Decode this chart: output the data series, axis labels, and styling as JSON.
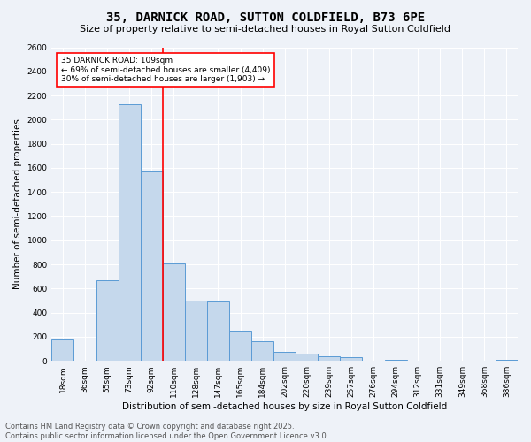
{
  "title": "35, DARNICK ROAD, SUTTON COLDFIELD, B73 6PE",
  "subtitle": "Size of property relative to semi-detached houses in Royal Sutton Coldfield",
  "xlabel": "Distribution of semi-detached houses by size in Royal Sutton Coldfield",
  "ylabel": "Number of semi-detached properties",
  "categories": [
    "18sqm",
    "36sqm",
    "55sqm",
    "73sqm",
    "92sqm",
    "110sqm",
    "128sqm",
    "147sqm",
    "165sqm",
    "184sqm",
    "202sqm",
    "220sqm",
    "239sqm",
    "257sqm",
    "276sqm",
    "294sqm",
    "312sqm",
    "331sqm",
    "349sqm",
    "368sqm",
    "386sqm"
  ],
  "values": [
    180,
    0,
    670,
    2130,
    1570,
    810,
    500,
    490,
    240,
    160,
    75,
    60,
    40,
    30,
    0,
    10,
    0,
    0,
    0,
    0,
    10
  ],
  "bar_color": "#c5d8ec",
  "bar_edge_color": "#5b9bd5",
  "annotation_title": "35 DARNICK ROAD: 109sqm",
  "annotation_line1": "← 69% of semi-detached houses are smaller (4,409)",
  "annotation_line2": "30% of semi-detached houses are larger (1,903) →",
  "ylim": [
    0,
    2600
  ],
  "yticks": [
    0,
    200,
    400,
    600,
    800,
    1000,
    1200,
    1400,
    1600,
    1800,
    2000,
    2200,
    2400,
    2600
  ],
  "footer_line1": "Contains HM Land Registry data © Crown copyright and database right 2025.",
  "footer_line2": "Contains public sector information licensed under the Open Government Licence v3.0.",
  "background_color": "#eef2f8",
  "plot_bg_color": "#eef2f8",
  "title_fontsize": 10,
  "subtitle_fontsize": 8,
  "tick_fontsize": 6.5,
  "ylabel_fontsize": 7.5,
  "xlabel_fontsize": 7.5,
  "footer_fontsize": 6,
  "annotation_fontsize": 6.5
}
